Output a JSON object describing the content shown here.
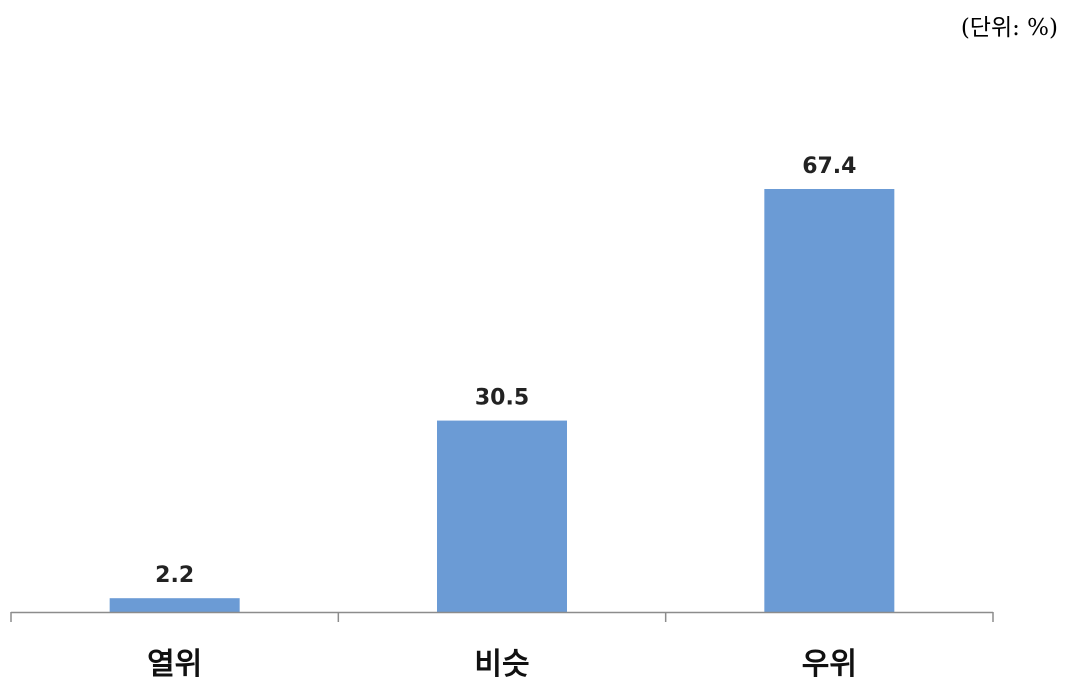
{
  "unit_note": "(단위: %)",
  "colors": {
    "bar": "#6b9bd5",
    "axis": "#8c8c8c"
  },
  "chart_data": {
    "type": "bar",
    "categories": [
      "열위",
      "비슷",
      "우위"
    ],
    "values": [
      2.2,
      30.5,
      67.4
    ],
    "data_labels": [
      "2.2",
      "30.5",
      "67.4"
    ],
    "title": "",
    "xlabel": "",
    "ylabel": "",
    "ylim": [
      0,
      67.4
    ],
    "grid": false,
    "legend": "none"
  }
}
